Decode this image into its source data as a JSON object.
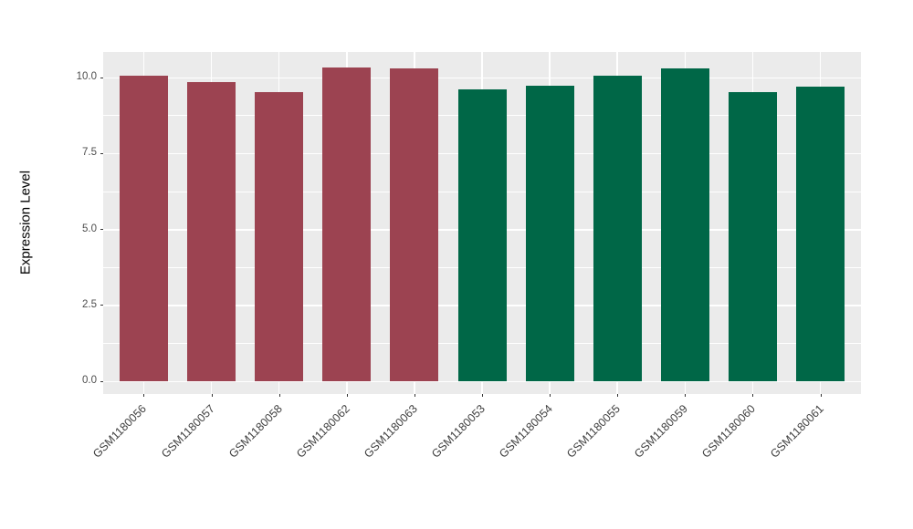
{
  "chart": {
    "y_axis_label": "Expression Level",
    "background": "#FFFFFF",
    "panel_background": "#EBEBEB",
    "grid_color": "#FFFFFF",
    "tick_color": "#333333",
    "tick_label_color": "#4D4D4D",
    "axis_title_color": "#000000"
  },
  "chart_data": {
    "type": "bar",
    "title": "",
    "xlabel": "",
    "ylabel": "Expression Level",
    "categories": [
      "GSM1180056",
      "GSM1180057",
      "GSM1180058",
      "GSM1180062",
      "GSM1180063",
      "GSM1180053",
      "GSM1180054",
      "GSM1180055",
      "GSM1180059",
      "GSM1180060",
      "GSM1180061"
    ],
    "values": [
      10.05,
      9.85,
      9.5,
      10.32,
      10.28,
      9.6,
      9.72,
      10.05,
      10.3,
      9.5,
      9.7
    ],
    "bar_colors": [
      "#9C4351",
      "#9C4351",
      "#9C4351",
      "#9C4351",
      "#9C4351",
      "#006747",
      "#006747",
      "#006747",
      "#006747",
      "#006747",
      "#006747"
    ],
    "group_colors": {
      "maroon_group": "#9C4351",
      "green_group": "#006747"
    },
    "ylim": [
      -0.43,
      10.83
    ],
    "yticks": [
      0.0,
      2.5,
      5.0,
      7.5,
      10.0
    ],
    "ytick_labels": [
      "0.0",
      "2.5",
      "5.0",
      "7.5",
      "10.0"
    ],
    "yticks_minor": [
      1.25,
      3.75,
      6.25,
      8.75
    ],
    "grid": "major+minor",
    "legend": "none",
    "x_tick_angle": 45
  }
}
